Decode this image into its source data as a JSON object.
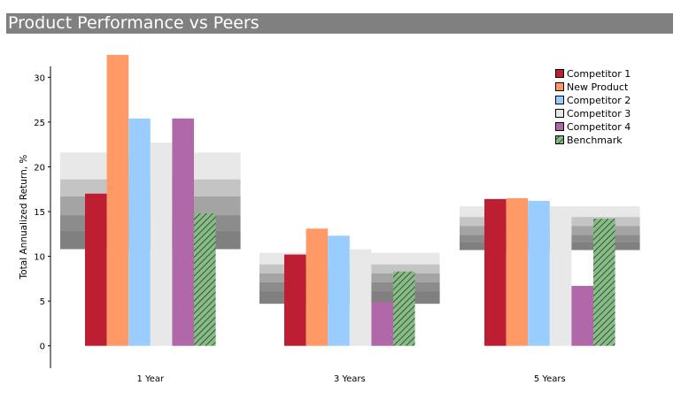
{
  "title": "Product Performance vs Peers",
  "chart_data": {
    "type": "bar",
    "title": "Product Performance vs Peers",
    "xlabel": "",
    "ylabel": "Total Annualized Return, %",
    "ylim": [
      -2.5,
      33
    ],
    "yticks": [
      0,
      5,
      10,
      15,
      20,
      25,
      30
    ],
    "grid": false,
    "legend_position": "top-right",
    "categories": [
      "1 Year",
      "3 Years",
      "5 Years"
    ],
    "series": [
      {
        "name": "Competitor 1",
        "color": "#be1e32",
        "values": [
          17.0,
          10.2,
          16.4
        ]
      },
      {
        "name": "New Product",
        "color": "#ff9966",
        "values": [
          32.5,
          13.1,
          16.5
        ]
      },
      {
        "name": "Competitor 2",
        "color": "#99ccff",
        "values": [
          25.4,
          12.3,
          16.2
        ]
      },
      {
        "name": "Competitor 3",
        "color": "#e8e8e8",
        "values": [
          22.7,
          10.8,
          15.6
        ]
      },
      {
        "name": "Competitor 4",
        "color": "#b068a8",
        "values": [
          25.4,
          4.9,
          6.7
        ]
      },
      {
        "name": "Benchmark",
        "color": "#88bb88",
        "pattern": "hatch",
        "values": [
          14.8,
          8.3,
          14.2
        ]
      }
    ],
    "percentile_bands": {
      "colors": [
        "#e8e8e8",
        "#c4c4c4",
        "#a4a4a4",
        "#8c8c8c",
        "#808080"
      ],
      "ranges": [
        [
          [
            18.6,
            21.6
          ],
          [
            16.7,
            18.6
          ],
          [
            14.6,
            16.7
          ],
          [
            12.9,
            14.6
          ],
          [
            10.8,
            12.9
          ]
        ],
        [
          [
            9.1,
            10.4
          ],
          [
            8.1,
            9.1
          ],
          [
            7.1,
            8.1
          ],
          [
            6.1,
            7.1
          ],
          [
            4.7,
            6.1
          ]
        ],
        [
          [
            14.4,
            15.6
          ],
          [
            13.4,
            14.4
          ],
          [
            12.4,
            13.4
          ],
          [
            11.6,
            12.4
          ],
          [
            10.7,
            11.6
          ]
        ]
      ]
    }
  }
}
